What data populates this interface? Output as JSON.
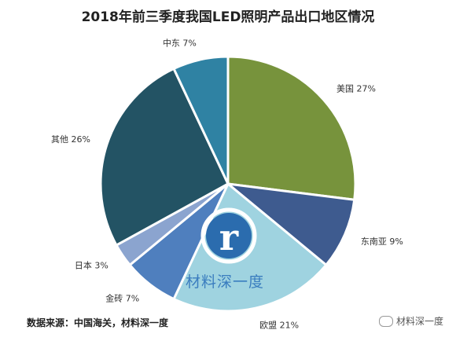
{
  "chart_data": {
    "type": "pie",
    "title": "2018年前三季度我国LED照明产品出口地区情况",
    "slices": [
      {
        "label": "美国",
        "value": 27,
        "display": "美国 27%",
        "color": "#77933c"
      },
      {
        "label": "东南亚",
        "value": 9,
        "display": "东南亚 9%",
        "color": "#3e5b8f"
      },
      {
        "label": "欧盟",
        "value": 21,
        "display": "欧盟 21%",
        "color": "#9fd3e0"
      },
      {
        "label": "金砖",
        "value": 7,
        "display": "金砖 7%",
        "color": "#4f7fbe"
      },
      {
        "label": "日本",
        "value": 3,
        "display": "日本 3%",
        "color": "#8ba4cf"
      },
      {
        "label": "其他",
        "value": 26,
        "display": "其他 26%",
        "color": "#235364"
      },
      {
        "label": "中东",
        "value": 7,
        "display": "中东 7%",
        "color": "#2f82a3"
      }
    ]
  },
  "source": "数据来源：中国海关，材料深一度",
  "watermark": {
    "center_text": "材料深一度",
    "logo_letter": "r",
    "corner_text": "材料深一度",
    "logo_color": "#2b6cae",
    "logo_ring_color": "#ffffff"
  }
}
